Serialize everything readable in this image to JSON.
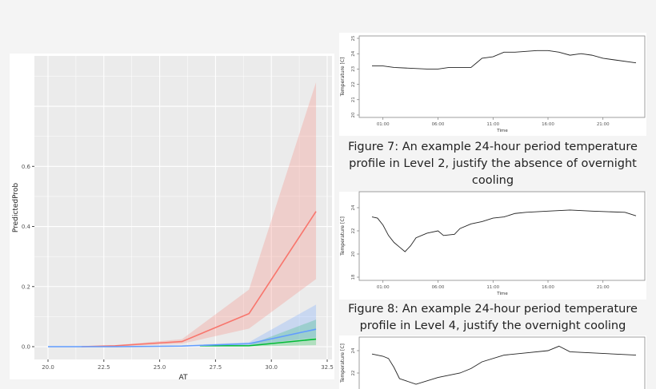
{
  "chart_data": [
    {
      "type": "line",
      "title": "",
      "xlabel": "AT",
      "ylabel": "PredictedProb",
      "xlim": [
        19.4,
        32.5
      ],
      "ylim": [
        -0.03,
        0.9
      ],
      "xticks": [
        "20.0",
        "22.5",
        "25.0",
        "27.5",
        "30.0",
        "32.5"
      ],
      "yticks": [
        "0.0",
        "0.2",
        "0.4",
        "0.6"
      ],
      "grid": true,
      "background": "#ebebeb",
      "series": [
        {
          "color": "#f8766d",
          "x": [
            21.5,
            23,
            26,
            29,
            32
          ],
          "y": [
            0,
            0.003,
            0.017,
            0.11,
            0.45
          ],
          "lower": [
            0,
            0.001,
            0.01,
            0.06,
            0.225
          ],
          "upper": [
            0.001,
            0.005,
            0.025,
            0.19,
            0.88
          ]
        },
        {
          "color": "#00ba38",
          "x": [
            26.8,
            29,
            32
          ],
          "y": [
            0.003,
            0.003,
            0.025
          ],
          "lower": [
            0.001,
            0.001,
            0.005
          ],
          "upper": [
            0.005,
            0.006,
            0.09
          ]
        },
        {
          "color": "#619cff",
          "x": [
            20,
            23,
            26,
            29,
            32
          ],
          "y": [
            0,
            0,
            0.002,
            0.01,
            0.058
          ],
          "lower": [
            0,
            0,
            0.001,
            0.005,
            0.03
          ],
          "upper": [
            0.001,
            0.001,
            0.004,
            0.015,
            0.14
          ]
        }
      ]
    },
    {
      "type": "line",
      "xlabel": "Time",
      "ylabel": "Temperature [C]",
      "xticks": [
        "01:00",
        "06:00",
        "11:00",
        "16:00",
        "21:00"
      ],
      "yticks": [
        "20",
        "21",
        "22",
        "23",
        "24",
        "25"
      ],
      "ylim": [
        20,
        25
      ],
      "caption": "Figure 7: An example 24-hour period temperature profile in Level 2, justify the absence of overnight cooling",
      "series": [
        {
          "color": "#222222",
          "x": [
            "00:00",
            "01:00",
            "02:00",
            "05:00",
            "06:00",
            "07:00",
            "09:00",
            "09:30",
            "10:00",
            "11:00",
            "12:00",
            "13:00",
            "15:00",
            "16:00",
            "17:00",
            "18:00",
            "19:00",
            "20:00",
            "21:00",
            "22:00",
            "24:00"
          ],
          "y": [
            23.2,
            23.2,
            23.1,
            23.0,
            23.0,
            23.1,
            23.1,
            23.4,
            23.7,
            23.8,
            24.1,
            24.1,
            24.2,
            24.2,
            24.1,
            23.9,
            24.0,
            23.9,
            23.7,
            23.6,
            23.4
          ]
        }
      ]
    },
    {
      "type": "line",
      "xlabel": "Time",
      "ylabel": "Temperature [C]",
      "xticks": [
        "01:00",
        "06:00",
        "11:00",
        "16:00",
        "21:00"
      ],
      "yticks": [
        "18",
        "20",
        "22",
        "24"
      ],
      "ylim": [
        18,
        24
      ],
      "caption": "Figure 8: An example 24-hour period temperature profile in Level 4, justify the overnight cooling",
      "series": [
        {
          "color": "#222222",
          "x": [
            "00:00",
            "00:30",
            "01:00",
            "01:30",
            "02:00",
            "02:30",
            "03:00",
            "03:30",
            "04:00",
            "05:00",
            "06:00",
            "06:30",
            "07:30",
            "08:00",
            "09:00",
            "10:00",
            "11:00",
            "12:00",
            "13:00",
            "14:00",
            "16:00",
            "18:00",
            "20:00",
            "23:00",
            "24:00"
          ],
          "y": [
            23.2,
            23.1,
            22.5,
            21.6,
            21.0,
            20.6,
            20.2,
            20.7,
            21.4,
            21.8,
            22.0,
            21.6,
            21.7,
            22.2,
            22.6,
            22.8,
            23.1,
            23.2,
            23.5,
            23.6,
            23.7,
            23.8,
            23.7,
            23.6,
            23.3
          ]
        }
      ]
    },
    {
      "type": "line",
      "ylabel": "Temperature [C]",
      "yticks": [
        "22",
        "24"
      ],
      "series": [
        {
          "color": "#222222",
          "x": [
            "00:00",
            "01:00",
            "01:30",
            "02:00",
            "02:30",
            "04:00",
            "06:00",
            "08:00",
            "09:00",
            "10:00",
            "12:00",
            "14:00",
            "16:00",
            "17:00",
            "18:00",
            "24:00"
          ],
          "y": [
            23.7,
            23.5,
            23.3,
            22.5,
            21.5,
            21.0,
            21.6,
            22.0,
            22.4,
            23.0,
            23.6,
            23.8,
            24.0,
            24.4,
            23.9,
            23.6
          ]
        }
      ]
    }
  ]
}
